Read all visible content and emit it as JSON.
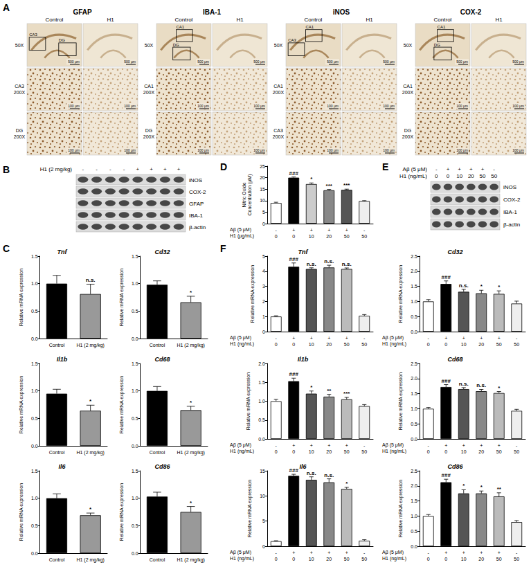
{
  "panel_letters": [
    "A",
    "B",
    "C",
    "D",
    "E",
    "F"
  ],
  "histology": {
    "groups": [
      {
        "title": "GFAP",
        "columns": [
          "Control",
          "H1"
        ],
        "boxes": [
          "CA3",
          "DG"
        ],
        "rows": [
          {
            "region": null,
            "magnification": "50X",
            "scale_bar": "500 μm"
          },
          {
            "region": "CA3",
            "magnification": "200X",
            "scale_bar": "100 μm"
          },
          {
            "region": "DG",
            "magnification": "200X",
            "scale_bar": "100 μm"
          }
        ]
      },
      {
        "title": "IBA-1",
        "columns": [
          "Control",
          "H1"
        ],
        "boxes": [
          "CA1",
          "DG"
        ],
        "rows": [
          {
            "region": null,
            "magnification": "50X",
            "scale_bar": "500 μm"
          },
          {
            "region": "CA1",
            "magnification": "200X",
            "scale_bar": "100 μm"
          },
          {
            "region": "DG",
            "magnification": "200X",
            "scale_bar": "100 μm"
          }
        ]
      },
      {
        "title": "iNOS",
        "columns": [
          "Control",
          "H1"
        ],
        "boxes": [
          "CA3",
          "CA1"
        ],
        "rows": [
          {
            "region": null,
            "magnification": "50X",
            "scale_bar": "500 μm"
          },
          {
            "region": "CA1",
            "magnification": "200X",
            "scale_bar": "100 μm"
          },
          {
            "region": "CA3",
            "magnification": "200X",
            "scale_bar": "100 μm"
          }
        ]
      },
      {
        "title": "COX-2",
        "columns": [
          "Control",
          "H1"
        ],
        "boxes": [
          "CA1",
          "DG"
        ],
        "rows": [
          {
            "region": null,
            "magnification": "50X",
            "scale_bar": "500 μm"
          },
          {
            "region": "CA1",
            "magnification": "200X",
            "scale_bar": "100 μm"
          },
          {
            "region": "DG",
            "magnification": "200X",
            "scale_bar": "100 μm"
          }
        ]
      }
    ]
  },
  "blot_b": {
    "treatments": [
      {
        "label": "H1 (2 mg/kg)",
        "values": [
          "-",
          "-",
          "-",
          "-",
          "+",
          "+",
          "+",
          "+"
        ]
      }
    ],
    "bands": [
      "iNOS",
      "COX-2",
      "GFAP",
      "IBA-1",
      "β-actin"
    ]
  },
  "blot_e": {
    "treatments": [
      {
        "label": "Aβ (5 μM)",
        "values": [
          "-",
          "+",
          "+",
          "+",
          "+",
          "-"
        ]
      },
      {
        "label": "H1 (ng/mL)",
        "values": [
          0,
          0,
          10,
          20,
          50,
          50
        ]
      }
    ],
    "bands": [
      "iNOS",
      "COX-2",
      "IBA-1",
      "β-actin"
    ]
  },
  "chart_data": [
    {
      "type": "bar",
      "title": "Tnf",
      "ylabel": "Relative mRNA expression",
      "categories": [
        "Control",
        "H1 (2 mg/kg)"
      ],
      "values": [
        1.0,
        0.81
      ],
      "errors": [
        0.15,
        0.18
      ],
      "significance": [
        null,
        "n.s."
      ],
      "colors": [
        "#000000",
        "#999999"
      ],
      "ylim": [
        0,
        1.5
      ],
      "yticks": [
        {
          "value": 0,
          "label": "0.0"
        },
        0.5,
        {
          "value": 1,
          "label": "1.0"
        },
        1.5
      ]
    },
    {
      "type": "bar",
      "title": "Cd32",
      "ylabel": "Relative mRNA expression",
      "categories": [
        "Control",
        "H1 (2 mg/kg)"
      ],
      "values": [
        0.98,
        0.66
      ],
      "errors": [
        0.07,
        0.11
      ],
      "significance": [
        null,
        "*"
      ],
      "colors": [
        "#000000",
        "#999999"
      ],
      "ylim": [
        0,
        1.5
      ],
      "yticks": [
        {
          "value": 0,
          "label": "0.0"
        },
        0.5,
        {
          "value": 1,
          "label": "1.0"
        },
        1.5
      ]
    },
    {
      "type": "bar",
      "title": "Il1b",
      "ylabel": "Relative mRNA expression",
      "categories": [
        "Control",
        "H1 (2 mg/kg)"
      ],
      "values": [
        0.95,
        0.64
      ],
      "errors": [
        0.08,
        0.1
      ],
      "significance": [
        null,
        "*"
      ],
      "colors": [
        "#000000",
        "#999999"
      ],
      "ylim": [
        0,
        1.5
      ],
      "yticks": [
        {
          "value": 0,
          "label": "0.0"
        },
        0.5,
        {
          "value": 1,
          "label": "1.0"
        },
        1.5
      ]
    },
    {
      "type": "bar",
      "title": "Cd68",
      "ylabel": "Relative mRNA expression",
      "categories": [
        "Control",
        "H1 (2 mg/kg)"
      ],
      "values": [
        1.0,
        0.65
      ],
      "errors": [
        0.08,
        0.07
      ],
      "significance": [
        null,
        "*"
      ],
      "colors": [
        "#000000",
        "#999999"
      ],
      "ylim": [
        0,
        1.5
      ],
      "yticks": [
        {
          "value": 0,
          "label": "0.0"
        },
        0.5,
        {
          "value": 1,
          "label": "1.0"
        },
        1.5
      ]
    },
    {
      "type": "bar",
      "title": "Il6",
      "ylabel": "Relative mRNA expression",
      "categories": [
        "Control",
        "H1 (2 mg/kg)"
      ],
      "values": [
        1.0,
        0.69
      ],
      "errors": [
        0.08,
        0.04
      ],
      "significance": [
        null,
        "*"
      ],
      "colors": [
        "#000000",
        "#999999"
      ],
      "ylim": [
        0,
        1.5
      ],
      "yticks": [
        {
          "value": 0,
          "label": "0.0"
        },
        0.5,
        {
          "value": 1,
          "label": "1.0"
        },
        1.5
      ]
    },
    {
      "type": "bar",
      "title": "Cd86",
      "ylabel": "Relative mRNA expression",
      "categories": [
        "Control",
        "H1 (2 mg/kg)"
      ],
      "values": [
        1.03,
        0.75
      ],
      "errors": [
        0.08,
        0.1
      ],
      "significance": [
        null,
        "*"
      ],
      "colors": [
        "#000000",
        "#999999"
      ],
      "ylim": [
        0,
        1.5
      ],
      "yticks": [
        {
          "value": 0,
          "label": "0.0"
        },
        0.5,
        {
          "value": 1,
          "label": "1.0"
        },
        1.5
      ]
    },
    {
      "type": "bar",
      "ylabel": "Nitric Oxide Concentration (μM)",
      "x_rows": [
        {
          "label": "Aβ (5 μM)",
          "values": [
            "-",
            "+",
            "+",
            "+",
            "+",
            "-"
          ]
        },
        {
          "label": "H1 (μg/mL)",
          "values": [
            0,
            0,
            10,
            20,
            50,
            50
          ]
        }
      ],
      "values": [
        9.0,
        20.0,
        17.2,
        14.5,
        14.7,
        9.8
      ],
      "errors": [
        0.3,
        0.3,
        0.5,
        0.4,
        0.3,
        0.2
      ],
      "significance": [
        null,
        "###",
        "*",
        "***",
        "***",
        null
      ],
      "colors": [
        "#ffffff",
        "#000000",
        "#cccccc",
        "#888888",
        "#555555",
        "#eeeeee"
      ],
      "ylim": [
        0,
        25
      ],
      "yticks": [
        0,
        5,
        10,
        15,
        20,
        25
      ]
    },
    {
      "type": "bar",
      "title": "Tnf",
      "ylabel": "Relative mRNA expression",
      "x_rows": [
        {
          "label": "Aβ (5 μM)",
          "values": [
            "-",
            "+",
            "+",
            "+",
            "+",
            "-"
          ]
        },
        {
          "label": "H1 (ng/mL)",
          "values": [
            0,
            0,
            10,
            20,
            50,
            50
          ]
        }
      ],
      "values": [
        1.0,
        4.3,
        4.15,
        4.25,
        4.15,
        1.05
      ],
      "errors": [
        0.05,
        0.25,
        0.08,
        0.15,
        0.07,
        0.08
      ],
      "significance": [
        null,
        "###",
        "n.s.",
        "n.s.",
        "n.s.",
        null
      ],
      "colors": [
        "#ffffff",
        "#000000",
        "#555555",
        "#888888",
        "#bbbbbb",
        "#eeeeee"
      ],
      "ylim": [
        0,
        5
      ],
      "yticks": [
        0,
        1,
        2,
        3,
        4,
        5
      ]
    },
    {
      "type": "bar",
      "title": "Cd32",
      "ylabel": "Relative mRNA expression",
      "x_rows": [
        {
          "label": "Aβ (5 μM)",
          "values": [
            "-",
            "+",
            "+",
            "+",
            "+",
            "-"
          ]
        },
        {
          "label": "H1 (ng/mL)",
          "values": [
            0,
            0,
            10,
            20,
            50,
            50
          ]
        }
      ],
      "values": [
        1.0,
        1.58,
        1.32,
        1.27,
        1.25,
        0.93
      ],
      "errors": [
        0.06,
        0.1,
        0.08,
        0.1,
        0.1,
        0.08
      ],
      "significance": [
        null,
        "###",
        "n.s.",
        "*",
        "*",
        null
      ],
      "colors": [
        "#ffffff",
        "#000000",
        "#555555",
        "#888888",
        "#bbbbbb",
        "#eeeeee"
      ],
      "ylim": [
        0,
        2.5
      ],
      "yticks": [
        {
          "value": 0,
          "label": "0.0"
        },
        0.5,
        {
          "value": 1,
          "label": "1.0"
        },
        1.5,
        {
          "value": 2,
          "label": "2.0"
        },
        2.5
      ]
    },
    {
      "type": "bar",
      "title": "Il1b",
      "ylabel": "Relative mRNA expression",
      "x_rows": [
        {
          "label": "Aβ (5 μM)",
          "values": [
            "-",
            "+",
            "+",
            "+",
            "+",
            "-"
          ]
        },
        {
          "label": "H1 (ng/mL)",
          "values": [
            0,
            0,
            10,
            20,
            50,
            50
          ]
        }
      ],
      "values": [
        1.0,
        1.53,
        1.2,
        1.12,
        1.05,
        0.87
      ],
      "errors": [
        0.05,
        0.08,
        0.07,
        0.06,
        0.05,
        0.04
      ],
      "significance": [
        null,
        "###",
        "*",
        "**",
        "***",
        null
      ],
      "colors": [
        "#ffffff",
        "#000000",
        "#555555",
        "#888888",
        "#bbbbbb",
        "#eeeeee"
      ],
      "ylim": [
        0,
        2
      ],
      "yticks": [
        {
          "value": 0,
          "label": "0.0"
        },
        0.5,
        {
          "value": 1,
          "label": "1.0"
        },
        1.5,
        {
          "value": 2,
          "label": "2.0"
        }
      ]
    },
    {
      "type": "bar",
      "title": "Cd68",
      "ylabel": "Relative mRNA expression",
      "x_rows": [
        {
          "label": "Aβ (5 μM)",
          "values": [
            "-",
            "+",
            "+",
            "+",
            "+",
            "-"
          ]
        },
        {
          "label": "H1 (ng/mL)",
          "values": [
            0,
            0,
            10,
            20,
            50,
            50
          ]
        }
      ],
      "values": [
        1.0,
        1.72,
        1.65,
        1.58,
        1.52,
        0.93
      ],
      "errors": [
        0.04,
        0.08,
        0.05,
        0.06,
        0.05,
        0.05
      ],
      "significance": [
        null,
        "###",
        "n.s.",
        "n.s.",
        "*",
        null
      ],
      "colors": [
        "#ffffff",
        "#000000",
        "#555555",
        "#888888",
        "#bbbbbb",
        "#eeeeee"
      ],
      "ylim": [
        0,
        2.5
      ],
      "yticks": [
        {
          "value": 0,
          "label": "0.0"
        },
        0.5,
        {
          "value": 1,
          "label": "1.0"
        },
        1.5,
        {
          "value": 2,
          "label": "2.0"
        },
        2.5
      ]
    },
    {
      "type": "bar",
      "title": "Il6",
      "ylabel": "Relative mRNA expression",
      "x_rows": [
        {
          "label": "Aβ (5 μM)",
          "values": [
            "-",
            "+",
            "+",
            "+",
            "+",
            "-"
          ]
        },
        {
          "label": "H1 (ng/mL)",
          "values": [
            0,
            0,
            10,
            20,
            50,
            50
          ]
        }
      ],
      "values": [
        1.0,
        14.0,
        13.2,
        12.7,
        11.4,
        1.1
      ],
      "errors": [
        0.1,
        0.3,
        0.6,
        0.7,
        0.3,
        0.2
      ],
      "significance": [
        null,
        "###",
        "n.s.",
        "n.s.",
        "*",
        null
      ],
      "colors": [
        "#ffffff",
        "#000000",
        "#555555",
        "#888888",
        "#bbbbbb",
        "#eeeeee"
      ],
      "ylim": [
        0,
        15
      ],
      "yticks": [
        0,
        5,
        10,
        15
      ]
    },
    {
      "type": "bar",
      "title": "Cd86",
      "ylabel": "Relative mRNA expression",
      "x_rows": [
        {
          "label": "Aβ (5 μM)",
          "values": [
            "-",
            "+",
            "+",
            "+",
            "+",
            "-"
          ]
        },
        {
          "label": "H1 (ng/mL)",
          "values": [
            0,
            0,
            10,
            20,
            50,
            50
          ]
        }
      ],
      "values": [
        1.0,
        2.12,
        1.75,
        1.75,
        1.65,
        0.8
      ],
      "errors": [
        0.05,
        0.1,
        0.12,
        0.08,
        0.12,
        0.05
      ],
      "significance": [
        null,
        "###",
        "*",
        "*",
        "**",
        null
      ],
      "colors": [
        "#ffffff",
        "#000000",
        "#555555",
        "#888888",
        "#bbbbbb",
        "#eeeeee"
      ],
      "ylim": [
        0,
        2.5
      ],
      "yticks": [
        {
          "value": 0,
          "label": "0.0"
        },
        0.5,
        {
          "value": 1,
          "label": "1.0"
        },
        1.5,
        {
          "value": 2,
          "label": "2.0"
        },
        2.5
      ]
    }
  ]
}
